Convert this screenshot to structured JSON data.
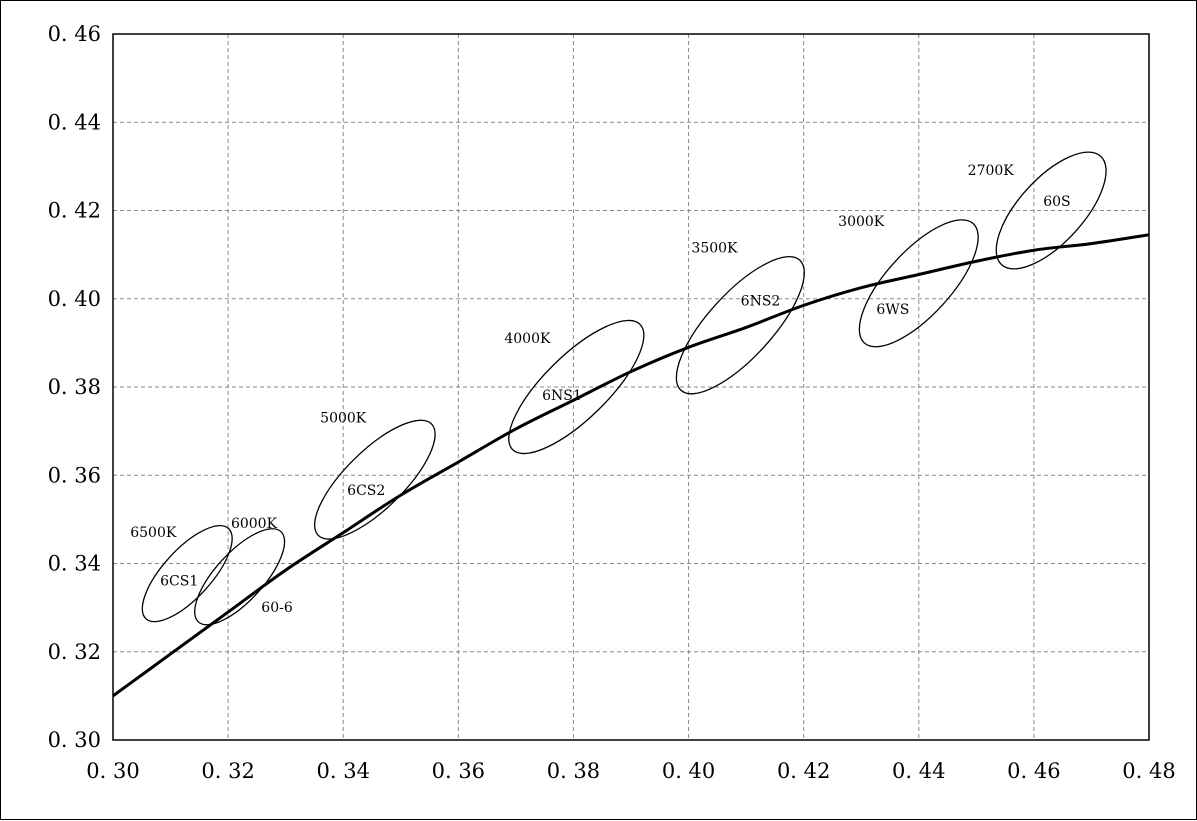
{
  "chart_data": {
    "type": "scatter",
    "xlim": [
      0.3,
      0.48
    ],
    "ylim": [
      0.3,
      0.46
    ],
    "x_ticks": [
      "0. 30",
      "0. 32",
      "0. 34",
      "0. 36",
      "0. 38",
      "0. 40",
      "0. 42",
      "0. 44",
      "0. 46",
      "0. 48"
    ],
    "y_ticks": [
      "0. 30",
      "0. 32",
      "0. 34",
      "0. 36",
      "0. 38",
      "0. 40",
      "0. 42",
      "0. 44",
      "0. 46"
    ],
    "x_tick_values": [
      0.3,
      0.32,
      0.34,
      0.36,
      0.38,
      0.4,
      0.42,
      0.44,
      0.46,
      0.48
    ],
    "y_tick_values": [
      0.3,
      0.32,
      0.34,
      0.36,
      0.38,
      0.4,
      0.42,
      0.44,
      0.46
    ],
    "grid": true,
    "planckian_locus": [
      [
        0.3,
        0.31
      ],
      [
        0.31,
        0.3195
      ],
      [
        0.32,
        0.329
      ],
      [
        0.33,
        0.3385
      ],
      [
        0.34,
        0.347
      ],
      [
        0.35,
        0.3555
      ],
      [
        0.36,
        0.363
      ],
      [
        0.37,
        0.3705
      ],
      [
        0.38,
        0.377
      ],
      [
        0.39,
        0.3835
      ],
      [
        0.4,
        0.389
      ],
      [
        0.41,
        0.3935
      ],
      [
        0.42,
        0.3985
      ],
      [
        0.43,
        0.4025
      ],
      [
        0.44,
        0.4055
      ],
      [
        0.45,
        0.4085
      ],
      [
        0.46,
        0.411
      ],
      [
        0.47,
        0.4125
      ],
      [
        0.48,
        0.4145
      ]
    ],
    "regions": [
      {
        "cct": "6500K",
        "code": "6CS1",
        "center": [
          0.3129,
          0.3377
        ],
        "angle": -55,
        "a": 0.0125,
        "b": 0.0045,
        "cct_pos": [
          0.307,
          0.346
        ],
        "code_pos": [
          0.3115,
          0.335
        ]
      },
      {
        "cct": "6000K",
        "code": "60-6",
        "center": [
          0.322,
          0.337
        ],
        "angle": -55,
        "a": 0.0125,
        "b": 0.0045,
        "cct_pos": [
          0.3245,
          0.348
        ],
        "code_pos": [
          0.3285,
          0.329
        ]
      },
      {
        "cct": "5000K",
        "code": "6CS2",
        "center": [
          0.3455,
          0.359
        ],
        "angle": -52,
        "a": 0.016,
        "b": 0.0055,
        "cct_pos": [
          0.34,
          0.372
        ],
        "code_pos": [
          0.344,
          0.3555
        ]
      },
      {
        "cct": "4000K",
        "code": "6NS1",
        "center": [
          0.3805,
          0.38
        ],
        "angle": -52,
        "a": 0.018,
        "b": 0.006,
        "cct_pos": [
          0.372,
          0.39
        ],
        "code_pos": [
          0.378,
          0.377
        ]
      },
      {
        "cct": "3500K",
        "code": "6NS2",
        "center": [
          0.409,
          0.394
        ],
        "angle": -55,
        "a": 0.018,
        "b": 0.006,
        "cct_pos": [
          0.4045,
          0.4105
        ],
        "code_pos": [
          0.4125,
          0.3985
        ]
      },
      {
        "cct": "3000K",
        "code": "6WS",
        "center": [
          0.44,
          0.4035
        ],
        "angle": -55,
        "a": 0.0165,
        "b": 0.006,
        "cct_pos": [
          0.43,
          0.4165
        ],
        "code_pos": [
          0.4355,
          0.3965
        ]
      },
      {
        "cct": "2700K",
        "code": "60S",
        "center": [
          0.463,
          0.42
        ],
        "angle": -55,
        "a": 0.015,
        "b": 0.006,
        "cct_pos": [
          0.4525,
          0.428
        ],
        "code_pos": [
          0.464,
          0.421
        ]
      }
    ]
  }
}
